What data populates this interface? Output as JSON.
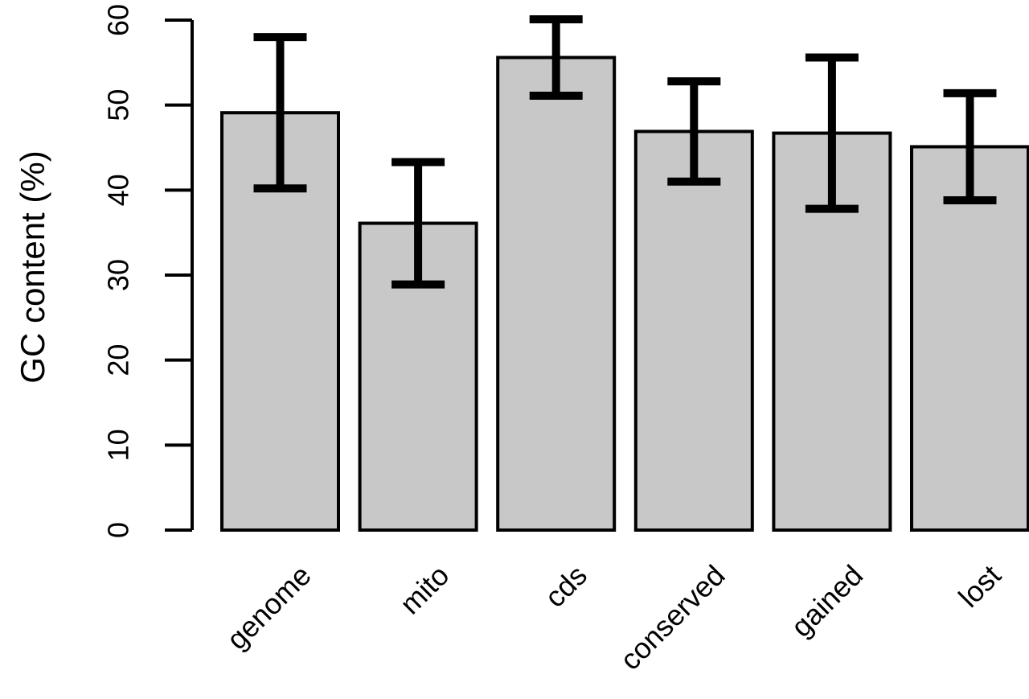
{
  "chart_data": {
    "type": "bar",
    "y_label": "GC content (%)",
    "categories": [
      "genome",
      "mito",
      "cds",
      "conserved",
      "gained",
      "lost"
    ],
    "values": [
      49.1,
      36.1,
      55.6,
      46.9,
      46.7,
      45.1
    ],
    "errors": [
      8.9,
      7.2,
      4.5,
      5.9,
      8.9,
      6.3
    ],
    "color": "#c8c8c8",
    "ylim": [
      0,
      60
    ],
    "yticks": [
      0,
      10,
      20,
      30,
      40,
      50,
      60
    ]
  }
}
